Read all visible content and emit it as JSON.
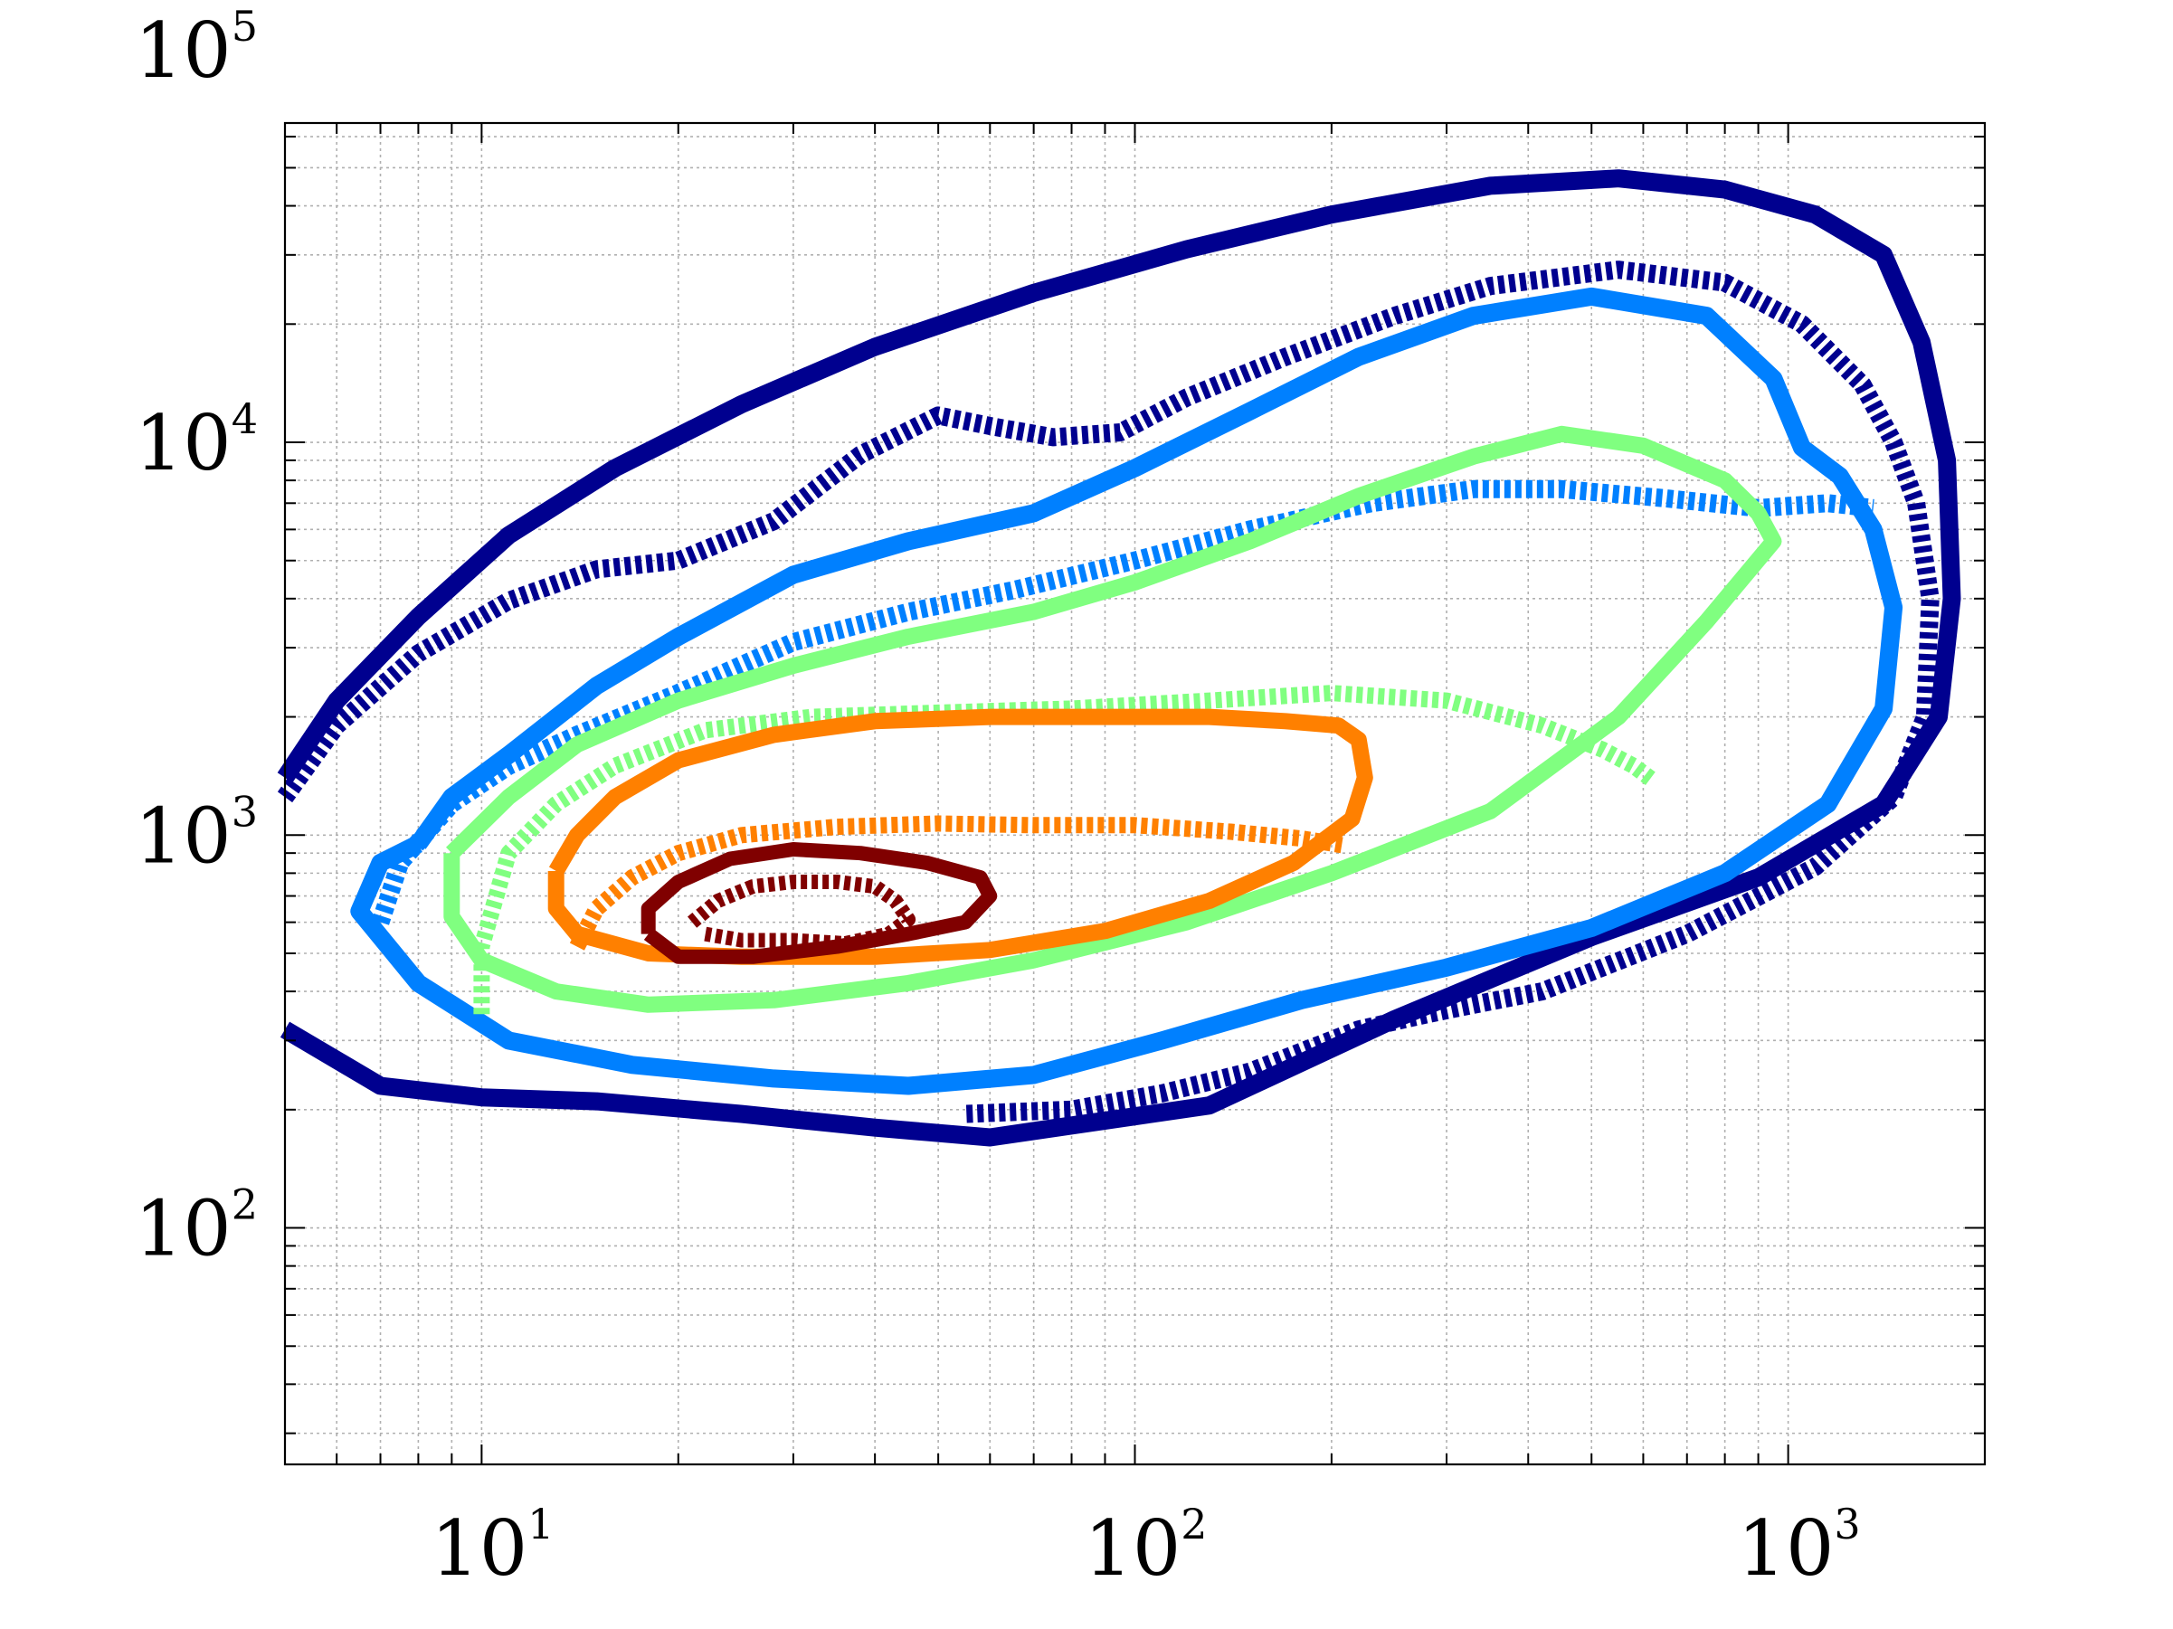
{
  "chart_data": {
    "type": "contour",
    "title": "",
    "xlabel": "",
    "ylabel": "",
    "x_scale": "log",
    "y_scale": "log",
    "xlim": [
      5,
      2000
    ],
    "ylim": [
      25,
      65000
    ],
    "grid": true,
    "x_ticks": [
      {
        "value": 10,
        "base": "10",
        "exp": "1"
      },
      {
        "value": 100,
        "base": "10",
        "exp": "2"
      },
      {
        "value": 1000,
        "base": "10",
        "exp": "3"
      }
    ],
    "y_ticks": [
      {
        "value": 100,
        "base": "10",
        "exp": "2"
      },
      {
        "value": 1000,
        "base": "10",
        "exp": "3"
      },
      {
        "value": 10000,
        "base": "10",
        "exp": "4"
      },
      {
        "value": 100000,
        "base": "10",
        "exp": "5"
      }
    ],
    "series": [
      {
        "style": "solid",
        "color": "#00008f",
        "width": 20,
        "points": [
          [
            5,
            1400
          ],
          [
            6,
            2200
          ],
          [
            8,
            3600
          ],
          [
            11,
            5800
          ],
          [
            16,
            8600
          ],
          [
            25,
            12500
          ],
          [
            40,
            17500
          ],
          [
            70,
            24000
          ],
          [
            120,
            31000
          ],
          [
            200,
            38000
          ],
          [
            350,
            45000
          ],
          [
            550,
            47000
          ],
          [
            800,
            44000
          ],
          [
            1100,
            38000
          ],
          [
            1400,
            30000
          ],
          [
            1600,
            18000
          ],
          [
            1750,
            9000
          ],
          [
            1780,
            4000
          ],
          [
            1700,
            2000
          ],
          [
            1400,
            1200
          ],
          [
            900,
            780
          ],
          [
            500,
            550
          ],
          [
            250,
            340
          ],
          [
            130,
            205
          ],
          [
            60,
            170
          ],
          [
            40,
            180
          ],
          [
            25,
            195
          ],
          [
            15,
            210
          ],
          [
            10,
            215
          ],
          [
            7,
            230
          ],
          [
            5,
            320
          ]
        ]
      },
      {
        "style": "dotted",
        "color": "#00008f",
        "width": 20,
        "points": [
          [
            5,
            1250
          ],
          [
            6,
            1900
          ],
          [
            8,
            2900
          ],
          [
            11,
            3950
          ],
          [
            15,
            4750
          ],
          [
            20,
            5000
          ],
          [
            28,
            6300
          ],
          [
            38,
            9300
          ],
          [
            50,
            11700
          ],
          [
            60,
            11000
          ],
          [
            75,
            10300
          ],
          [
            95,
            10600
          ],
          [
            120,
            13000
          ],
          [
            170,
            16500
          ],
          [
            250,
            21000
          ],
          [
            350,
            25000
          ],
          [
            550,
            27500
          ],
          [
            800,
            25500
          ],
          [
            1050,
            20000
          ],
          [
            1300,
            14000
          ],
          [
            1450,
            10000
          ],
          [
            1570,
            7000
          ],
          [
            1650,
            4000
          ],
          [
            1620,
            2000
          ],
          [
            1450,
            1250
          ],
          [
            1100,
            830
          ],
          [
            700,
            560
          ],
          [
            420,
            400
          ],
          [
            330,
            370
          ],
          [
            280,
            350
          ],
          [
            220,
            320
          ],
          [
            150,
            250
          ],
          [
            110,
            220
          ],
          [
            80,
            200
          ],
          [
            55,
            195
          ]
        ]
      },
      {
        "style": "solid",
        "color": "#0080ff",
        "width": 20,
        "points": [
          [
            8,
            950
          ],
          [
            9,
            1250
          ],
          [
            11,
            1600
          ],
          [
            15,
            2400
          ],
          [
            20,
            3200
          ],
          [
            30,
            4600
          ],
          [
            45,
            5600
          ],
          [
            70,
            6600
          ],
          [
            100,
            8600
          ],
          [
            150,
            12000
          ],
          [
            220,
            16500
          ],
          [
            330,
            21000
          ],
          [
            500,
            23500
          ],
          [
            750,
            21000
          ],
          [
            950,
            14500
          ],
          [
            1050,
            9700
          ],
          [
            1200,
            8200
          ],
          [
            1350,
            6000
          ],
          [
            1450,
            3800
          ],
          [
            1400,
            2100
          ],
          [
            1150,
            1200
          ],
          [
            800,
            800
          ],
          [
            500,
            580
          ],
          [
            300,
            460
          ],
          [
            180,
            380
          ],
          [
            110,
            300
          ],
          [
            70,
            245
          ],
          [
            45,
            230
          ],
          [
            28,
            240
          ],
          [
            17,
            260
          ],
          [
            11,
            300
          ],
          [
            8,
            420
          ],
          [
            6.5,
            640
          ],
          [
            7,
            850
          ],
          [
            8,
            950
          ]
        ]
      },
      {
        "style": "dotted",
        "color": "#0080ff",
        "width": 20,
        "points": [
          [
            7,
            600
          ],
          [
            7.5,
            850
          ],
          [
            9,
            1200
          ],
          [
            11,
            1500
          ],
          [
            14,
            1800
          ],
          [
            20,
            2300
          ],
          [
            30,
            3100
          ],
          [
            45,
            3700
          ],
          [
            65,
            4200
          ],
          [
            100,
            5000
          ],
          [
            150,
            6000
          ],
          [
            230,
            7000
          ],
          [
            330,
            7600
          ],
          [
            450,
            7600
          ],
          [
            650,
            7200
          ],
          [
            900,
            6800
          ],
          [
            1150,
            7000
          ],
          [
            1350,
            6800
          ]
        ]
      },
      {
        "style": "solid",
        "color": "#80ff80",
        "width": 18,
        "points": [
          [
            9,
            900
          ],
          [
            11,
            1250
          ],
          [
            14,
            1700
          ],
          [
            20,
            2200
          ],
          [
            30,
            2700
          ],
          [
            45,
            3200
          ],
          [
            70,
            3700
          ],
          [
            100,
            4400
          ],
          [
            150,
            5600
          ],
          [
            220,
            7300
          ],
          [
            330,
            9200
          ],
          [
            450,
            10500
          ],
          [
            600,
            9800
          ],
          [
            800,
            8000
          ],
          [
            900,
            6600
          ],
          [
            950,
            5600
          ],
          [
            750,
            3500
          ],
          [
            550,
            2000
          ],
          [
            350,
            1150
          ],
          [
            200,
            800
          ],
          [
            120,
            600
          ],
          [
            70,
            480
          ],
          [
            45,
            420
          ],
          [
            28,
            380
          ],
          [
            18,
            370
          ],
          [
            13,
            400
          ],
          [
            10,
            480
          ],
          [
            9,
            620
          ],
          [
            9,
            900
          ]
        ]
      },
      {
        "style": "dotted",
        "color": "#80ff80",
        "width": 18,
        "points": [
          [
            10,
            350
          ],
          [
            10,
            520
          ],
          [
            11,
            900
          ],
          [
            13,
            1200
          ],
          [
            16,
            1500
          ],
          [
            22,
            1850
          ],
          [
            32,
            2000
          ],
          [
            50,
            2050
          ],
          [
            80,
            2100
          ],
          [
            130,
            2200
          ],
          [
            200,
            2300
          ],
          [
            300,
            2200
          ],
          [
            420,
            1900
          ],
          [
            520,
            1650
          ],
          [
            580,
            1500
          ],
          [
            620,
            1380
          ]
        ]
      },
      {
        "style": "solid",
        "color": "#ff8000",
        "width": 18,
        "points": [
          [
            13,
            810
          ],
          [
            14,
            1000
          ],
          [
            16,
            1250
          ],
          [
            20,
            1550
          ],
          [
            28,
            1800
          ],
          [
            40,
            1950
          ],
          [
            60,
            2000
          ],
          [
            90,
            2000
          ],
          [
            130,
            2000
          ],
          [
            170,
            1950
          ],
          [
            205,
            1900
          ],
          [
            220,
            1750
          ],
          [
            225,
            1400
          ],
          [
            215,
            1100
          ],
          [
            175,
            850
          ],
          [
            130,
            680
          ],
          [
            90,
            570
          ],
          [
            60,
            510
          ],
          [
            40,
            490
          ],
          [
            25,
            490
          ],
          [
            18,
            500
          ],
          [
            14,
            560
          ],
          [
            13,
            650
          ],
          [
            13,
            810
          ]
        ]
      },
      {
        "style": "dotted",
        "color": "#ff8000",
        "width": 18,
        "points": [
          [
            14,
            520
          ],
          [
            15,
            650
          ],
          [
            17,
            780
          ],
          [
            20,
            900
          ],
          [
            25,
            1000
          ],
          [
            35,
            1050
          ],
          [
            50,
            1070
          ],
          [
            70,
            1060
          ],
          [
            100,
            1060
          ],
          [
            140,
            1020
          ],
          [
            180,
            980
          ],
          [
            210,
            940
          ]
        ]
      },
      {
        "style": "solid",
        "color": "#800000",
        "width": 16,
        "points": [
          [
            18,
            560
          ],
          [
            18,
            650
          ],
          [
            20,
            760
          ],
          [
            24,
            870
          ],
          [
            30,
            920
          ],
          [
            38,
            900
          ],
          [
            48,
            850
          ],
          [
            58,
            780
          ],
          [
            60,
            700
          ],
          [
            55,
            600
          ],
          [
            45,
            560
          ],
          [
            35,
            520
          ],
          [
            26,
            490
          ],
          [
            20,
            490
          ],
          [
            18,
            560
          ]
        ]
      },
      {
        "style": "dotted",
        "color": "#800000",
        "width": 16,
        "points": [
          [
            21,
            600
          ],
          [
            23,
            680
          ],
          [
            26,
            740
          ],
          [
            30,
            760
          ],
          [
            35,
            760
          ],
          [
            40,
            740
          ],
          [
            43,
            680
          ],
          [
            45,
            610
          ],
          [
            42,
            560
          ],
          [
            36,
            530
          ],
          [
            30,
            540
          ],
          [
            25,
            540
          ],
          [
            22,
            560
          ]
        ]
      }
    ]
  }
}
